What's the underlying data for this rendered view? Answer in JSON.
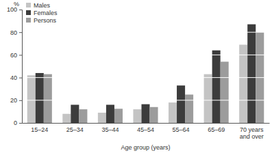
{
  "chart_data": {
    "type": "bar",
    "x_label": "Age group (years)",
    "y_label": "%",
    "categories": [
      "15–24",
      "25–34",
      "35–44",
      "45–54",
      "55–64",
      "65–69",
      "70 years and over"
    ],
    "series": [
      {
        "name": "Males",
        "color": "#c4c4c4",
        "values": [
          42,
          8,
          9,
          12,
          18,
          43,
          69
        ]
      },
      {
        "name": "Females",
        "color": "#3c3c3c",
        "values": [
          44,
          16,
          16,
          16.5,
          33,
          64,
          87
        ]
      },
      {
        "name": "Persons",
        "color": "#9c9c9c",
        "values": [
          43,
          12,
          12.5,
          14,
          25,
          54,
          80
        ]
      }
    ],
    "ylim": [
      0,
      100
    ],
    "yticks": [
      0,
      20,
      40,
      60,
      80,
      100
    ],
    "grid": true,
    "legend": "top-left"
  }
}
